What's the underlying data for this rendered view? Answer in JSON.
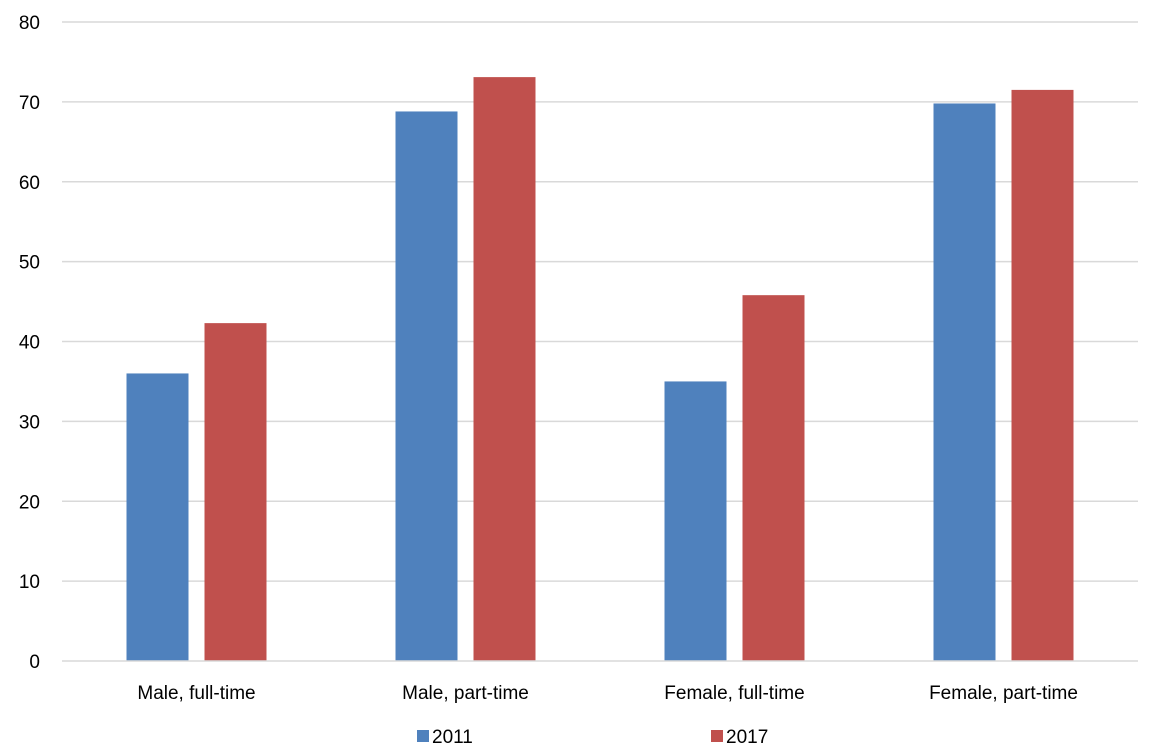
{
  "chart_data": {
    "type": "bar",
    "title": "",
    "xlabel": "",
    "ylabel": "",
    "ylim": [
      0,
      80
    ],
    "yticks": [
      0,
      10,
      20,
      30,
      40,
      50,
      60,
      70,
      80
    ],
    "grid": true,
    "legend_position": "bottom",
    "categories": [
      "Male, full-time",
      "Male, part-time",
      "Female, full-time",
      "Female, part-time"
    ],
    "series": [
      {
        "name": "2011",
        "color": "#4F81BD",
        "values": [
          36.0,
          68.8,
          35.0,
          69.8
        ]
      },
      {
        "name": "2017",
        "color": "#C0504D",
        "values": [
          42.3,
          73.1,
          45.8,
          71.5
        ]
      }
    ]
  }
}
